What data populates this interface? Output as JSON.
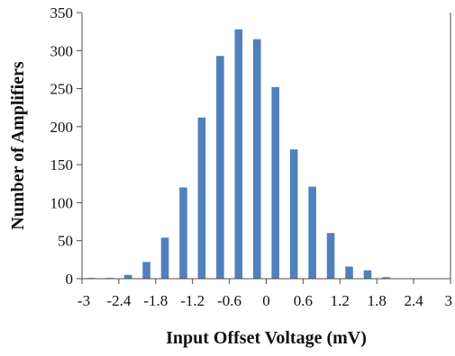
{
  "chart_data": {
    "type": "bar",
    "title": "",
    "xlabel": "Input Offset Voltage (mV)",
    "ylabel": "Number of Amplifiers",
    "xlim": [
      -3,
      3
    ],
    "ylim": [
      0,
      350
    ],
    "x_ticks": [
      "-3",
      "-2.4",
      "-1.8",
      "-1.2",
      "-0.6",
      "0",
      "0.6",
      "1.2",
      "1.8",
      "2.4",
      "3"
    ],
    "y_ticks": [
      "0",
      "50",
      "100",
      "150",
      "200",
      "250",
      "300",
      "350"
    ],
    "x_tick_values": [
      -3,
      -2.4,
      -1.8,
      -1.2,
      -0.6,
      0,
      0.6,
      1.2,
      1.8,
      2.4,
      3
    ],
    "y_tick_values": [
      0,
      50,
      100,
      150,
      200,
      250,
      300,
      350
    ],
    "bin_width": 0.3,
    "bins": [
      -2.85,
      -2.55,
      -2.25,
      -1.95,
      -1.65,
      -1.35,
      -1.05,
      -0.75,
      -0.45,
      -0.15,
      0.15,
      0.45,
      0.75,
      1.05,
      1.35,
      1.65,
      1.95,
      2.25,
      2.55,
      2.85
    ],
    "values": [
      1,
      1,
      5,
      22,
      54,
      120,
      212,
      293,
      328,
      315,
      252,
      170,
      121,
      60,
      16,
      11,
      2,
      0,
      0,
      0
    ],
    "grid": false,
    "bar_color": "#4f81bd"
  }
}
